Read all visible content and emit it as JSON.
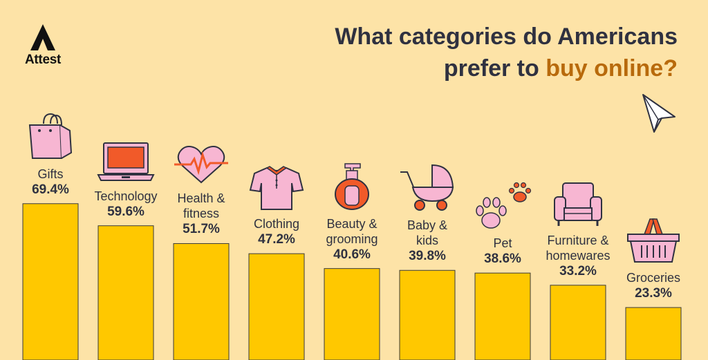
{
  "brand": {
    "name": "Attest",
    "logo_icon": "attest-logo-icon"
  },
  "title": {
    "line1": "What categories do Americans",
    "line2_plain": "prefer to ",
    "line2_accent": "buy online?"
  },
  "colors": {
    "background": "#fde3a7",
    "bar": "#ffc800",
    "accent": "#b86a0c",
    "text": "#2f3140",
    "icon_pink": "#f7b6d2",
    "icon_orange": "#f15a29"
  },
  "chart_data": {
    "type": "bar",
    "title": "What categories do Americans prefer to buy online?",
    "categories": [
      "Gifts",
      "Technology",
      "Health & fitness",
      "Clothing",
      "Beauty & grooming",
      "Baby & kids",
      "Pet",
      "Furniture & homewares",
      "Groceries"
    ],
    "values": [
      69.4,
      59.6,
      51.7,
      47.2,
      40.6,
      39.8,
      38.6,
      33.2,
      23.3
    ],
    "value_labels": [
      "69.4%",
      "59.6%",
      "51.7%",
      "47.2%",
      "40.6%",
      "39.8%",
      "38.6%",
      "33.2%",
      "23.3%"
    ],
    "label_lines": [
      [
        "Gifts"
      ],
      [
        "Technology"
      ],
      [
        "Health &",
        "fitness"
      ],
      [
        "Clothing"
      ],
      [
        "Beauty &",
        "grooming"
      ],
      [
        "Baby &",
        "kids"
      ],
      [
        "Pet"
      ],
      [
        "Furniture &",
        "homewares"
      ],
      [
        "Groceries"
      ]
    ],
    "icons": [
      "shopping-bag-icon",
      "laptop-icon",
      "heartbeat-icon",
      "shirt-icon",
      "lotion-bottle-icon",
      "stroller-icon",
      "paw-prints-icon",
      "armchair-icon",
      "basket-icon"
    ],
    "unit": "%",
    "xlabel": "",
    "ylabel": "",
    "ylim": [
      0,
      100
    ],
    "grid": false,
    "legend": "none"
  },
  "decor": {
    "cursor_icon": "cursor-arrow-icon"
  }
}
